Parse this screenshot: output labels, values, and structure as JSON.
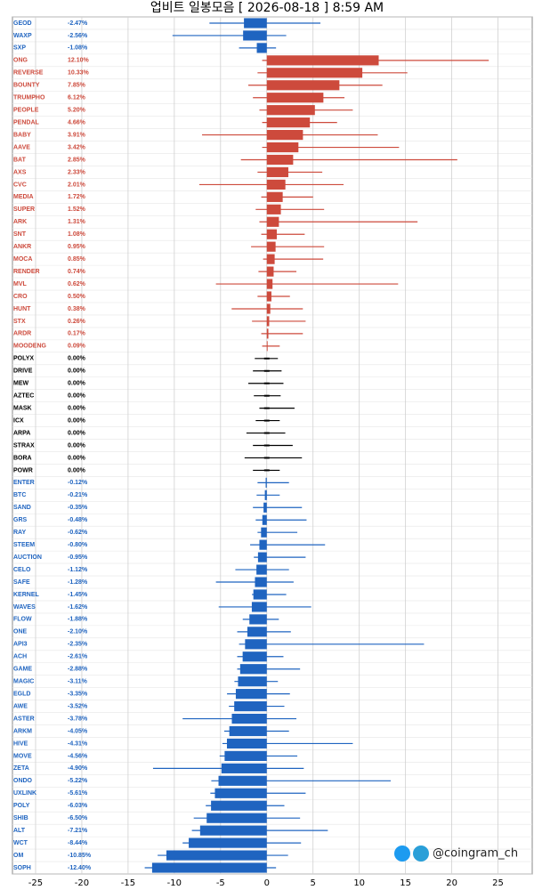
{
  "chart_data": {
    "type": "range-bar",
    "title": "업비트 일봉모음 [ 2026-08-18 ]  8:59 AM",
    "watermark": "@coingram_ch",
    "colors": {
      "up": "#cd4a3c",
      "flat": "#000000",
      "down": "#1f64c0"
    },
    "xlim": [
      -27.5,
      28.7
    ],
    "xticks": [
      -25,
      -20,
      -15,
      -10,
      -5,
      0,
      5,
      10,
      15,
      20,
      25
    ],
    "grid": true,
    "categories": [
      "GEOD",
      "WAXP",
      "SXP",
      "ONG",
      "REVERSE",
      "BOUNTY",
      "TRUMPHO",
      "PEOPLE",
      "PENDAL",
      "BABY",
      "AAVE",
      "BAT",
      "AXS",
      "CVC",
      "MEDIA",
      "SUPER",
      "ARK",
      "SNT",
      "ANKR",
      "MOCA",
      "RENDER",
      "MVL",
      "CRO",
      "HUNT",
      "STX",
      "ARDR",
      "MOODENG",
      "POLYX",
      "DRIVE",
      "MEW",
      "AZTEC",
      "MASK",
      "ICX",
      "ARPA",
      "STRAX",
      "BORA",
      "POWR",
      "ENTER",
      "BTC",
      "SAND",
      "GRS",
      "RAY",
      "STEEM",
      "AUCTION",
      "CELO",
      "SAFE",
      "KERNEL",
      "WAVES",
      "FLOW",
      "ONE",
      "API3",
      "ACH",
      "GAME",
      "MAGIC",
      "EGLD",
      "AWE",
      "ASTER",
      "ARKM",
      "HIVE",
      "MOVE",
      "ZETA",
      "ONDO",
      "UXLINK",
      "POLY",
      "SHIB",
      "ALT",
      "WCT",
      "OM",
      "SOPH"
    ],
    "values": [
      -2.47,
      -2.56,
      -1.08,
      12.1,
      10.33,
      7.85,
      6.12,
      5.2,
      4.66,
      3.91,
      3.42,
      2.85,
      2.33,
      2.01,
      1.72,
      1.52,
      1.31,
      1.08,
      0.95,
      0.85,
      0.74,
      0.62,
      0.5,
      0.38,
      0.26,
      0.17,
      0.09,
      0,
      0,
      0,
      0,
      0,
      0,
      0,
      0,
      0,
      0,
      -0.12,
      -0.21,
      -0.35,
      -0.48,
      -0.62,
      -0.8,
      -0.95,
      -1.12,
      -1.28,
      -1.45,
      -1.62,
      -1.88,
      -2.1,
      -2.35,
      -2.61,
      -2.88,
      -3.11,
      -3.35,
      -3.52,
      -3.78,
      -4.05,
      -4.31,
      -4.56,
      -4.9,
      -5.22,
      -5.61,
      -6.03,
      -6.5,
      -7.21,
      -8.44,
      -10.85,
      -12.4
    ],
    "value_labels": [
      "-2.47%",
      "-2.56%",
      "-1.08%",
      "12.10%",
      "10.33%",
      "7.85%",
      "6.12%",
      "5.20%",
      "4.66%",
      "3.91%",
      "3.42%",
      "2.85%",
      "2.33%",
      "2.01%",
      "1.72%",
      "1.52%",
      "1.31%",
      "1.08%",
      "0.95%",
      "0.85%",
      "0.74%",
      "0.62%",
      "0.50%",
      "0.38%",
      "0.26%",
      "0.17%",
      "0.09%",
      "0.00%",
      "0.00%",
      "0.00%",
      "0.00%",
      "0.00%",
      "0.00%",
      "0.00%",
      "0.00%",
      "0.00%",
      "0.00%",
      "-0.12%",
      "-0.21%",
      "-0.35%",
      "-0.48%",
      "-0.62%",
      "-0.80%",
      "-0.95%",
      "-1.12%",
      "-1.28%",
      "-1.45%",
      "-1.62%",
      "-1.88%",
      "-2.10%",
      "-2.35%",
      "-2.61%",
      "-2.88%",
      "-3.11%",
      "-3.35%",
      "-3.52%",
      "-3.78%",
      "-4.05%",
      "-4.31%",
      "-4.56%",
      "-4.90%",
      "-5.22%",
      "-5.61%",
      "-6.03%",
      "-6.50%",
      "-7.21%",
      "-8.44%",
      "-10.85%",
      "-12.40%"
    ],
    "low": [
      -6.2,
      -10.2,
      -3,
      -0.5,
      -1,
      -2,
      -1.5,
      -0.8,
      -0.5,
      -7,
      -0.5,
      -2.8,
      -1,
      -7.3,
      -0.6,
      -1.2,
      -0.8,
      -0.6,
      -1.7,
      -0.4,
      -0.9,
      -5.5,
      -1,
      -3.8,
      -1.6,
      -0.6,
      -0.5,
      -1.3,
      -1.5,
      -2,
      -1.4,
      -0.8,
      -1.2,
      -2.2,
      -1.5,
      -2.4,
      -1.5,
      -1,
      -1.1,
      -1.5,
      -1.2,
      -1,
      -1.8,
      -1.4,
      -3.4,
      -5.5,
      -1.6,
      -5.2,
      -2.6,
      -3.2,
      -3,
      -3.2,
      -3.2,
      -3.5,
      -4.3,
      -4.1,
      -9.1,
      -4.6,
      -4.8,
      -5.1,
      -12.3,
      -6,
      -6.1,
      -6.6,
      -7.9,
      -8.1,
      -9.1,
      -11.8,
      -13.2
    ],
    "high": [
      5.8,
      2.1,
      1,
      24,
      15.2,
      12.5,
      8.4,
      9.3,
      7.6,
      12,
      14.3,
      20.6,
      6,
      8.3,
      5,
      6.2,
      16.3,
      4.1,
      6.2,
      6.1,
      3.2,
      14.2,
      2.5,
      3.9,
      4.2,
      3.9,
      1.4,
      1.2,
      1.6,
      1.8,
      1.5,
      3,
      1.4,
      2,
      2.8,
      3.8,
      1.4,
      2.4,
      1.4,
      3.8,
      4.3,
      3.3,
      6.3,
      4.2,
      2.4,
      2.9,
      2.1,
      4.8,
      1.3,
      2.6,
      17,
      1.8,
      3.6,
      1.2,
      2.5,
      1.9,
      3.2,
      2.4,
      9.3,
      3.3,
      4,
      13.4,
      4.2,
      1.9,
      3.6,
      6.6,
      3.7,
      2.3,
      1
    ]
  }
}
